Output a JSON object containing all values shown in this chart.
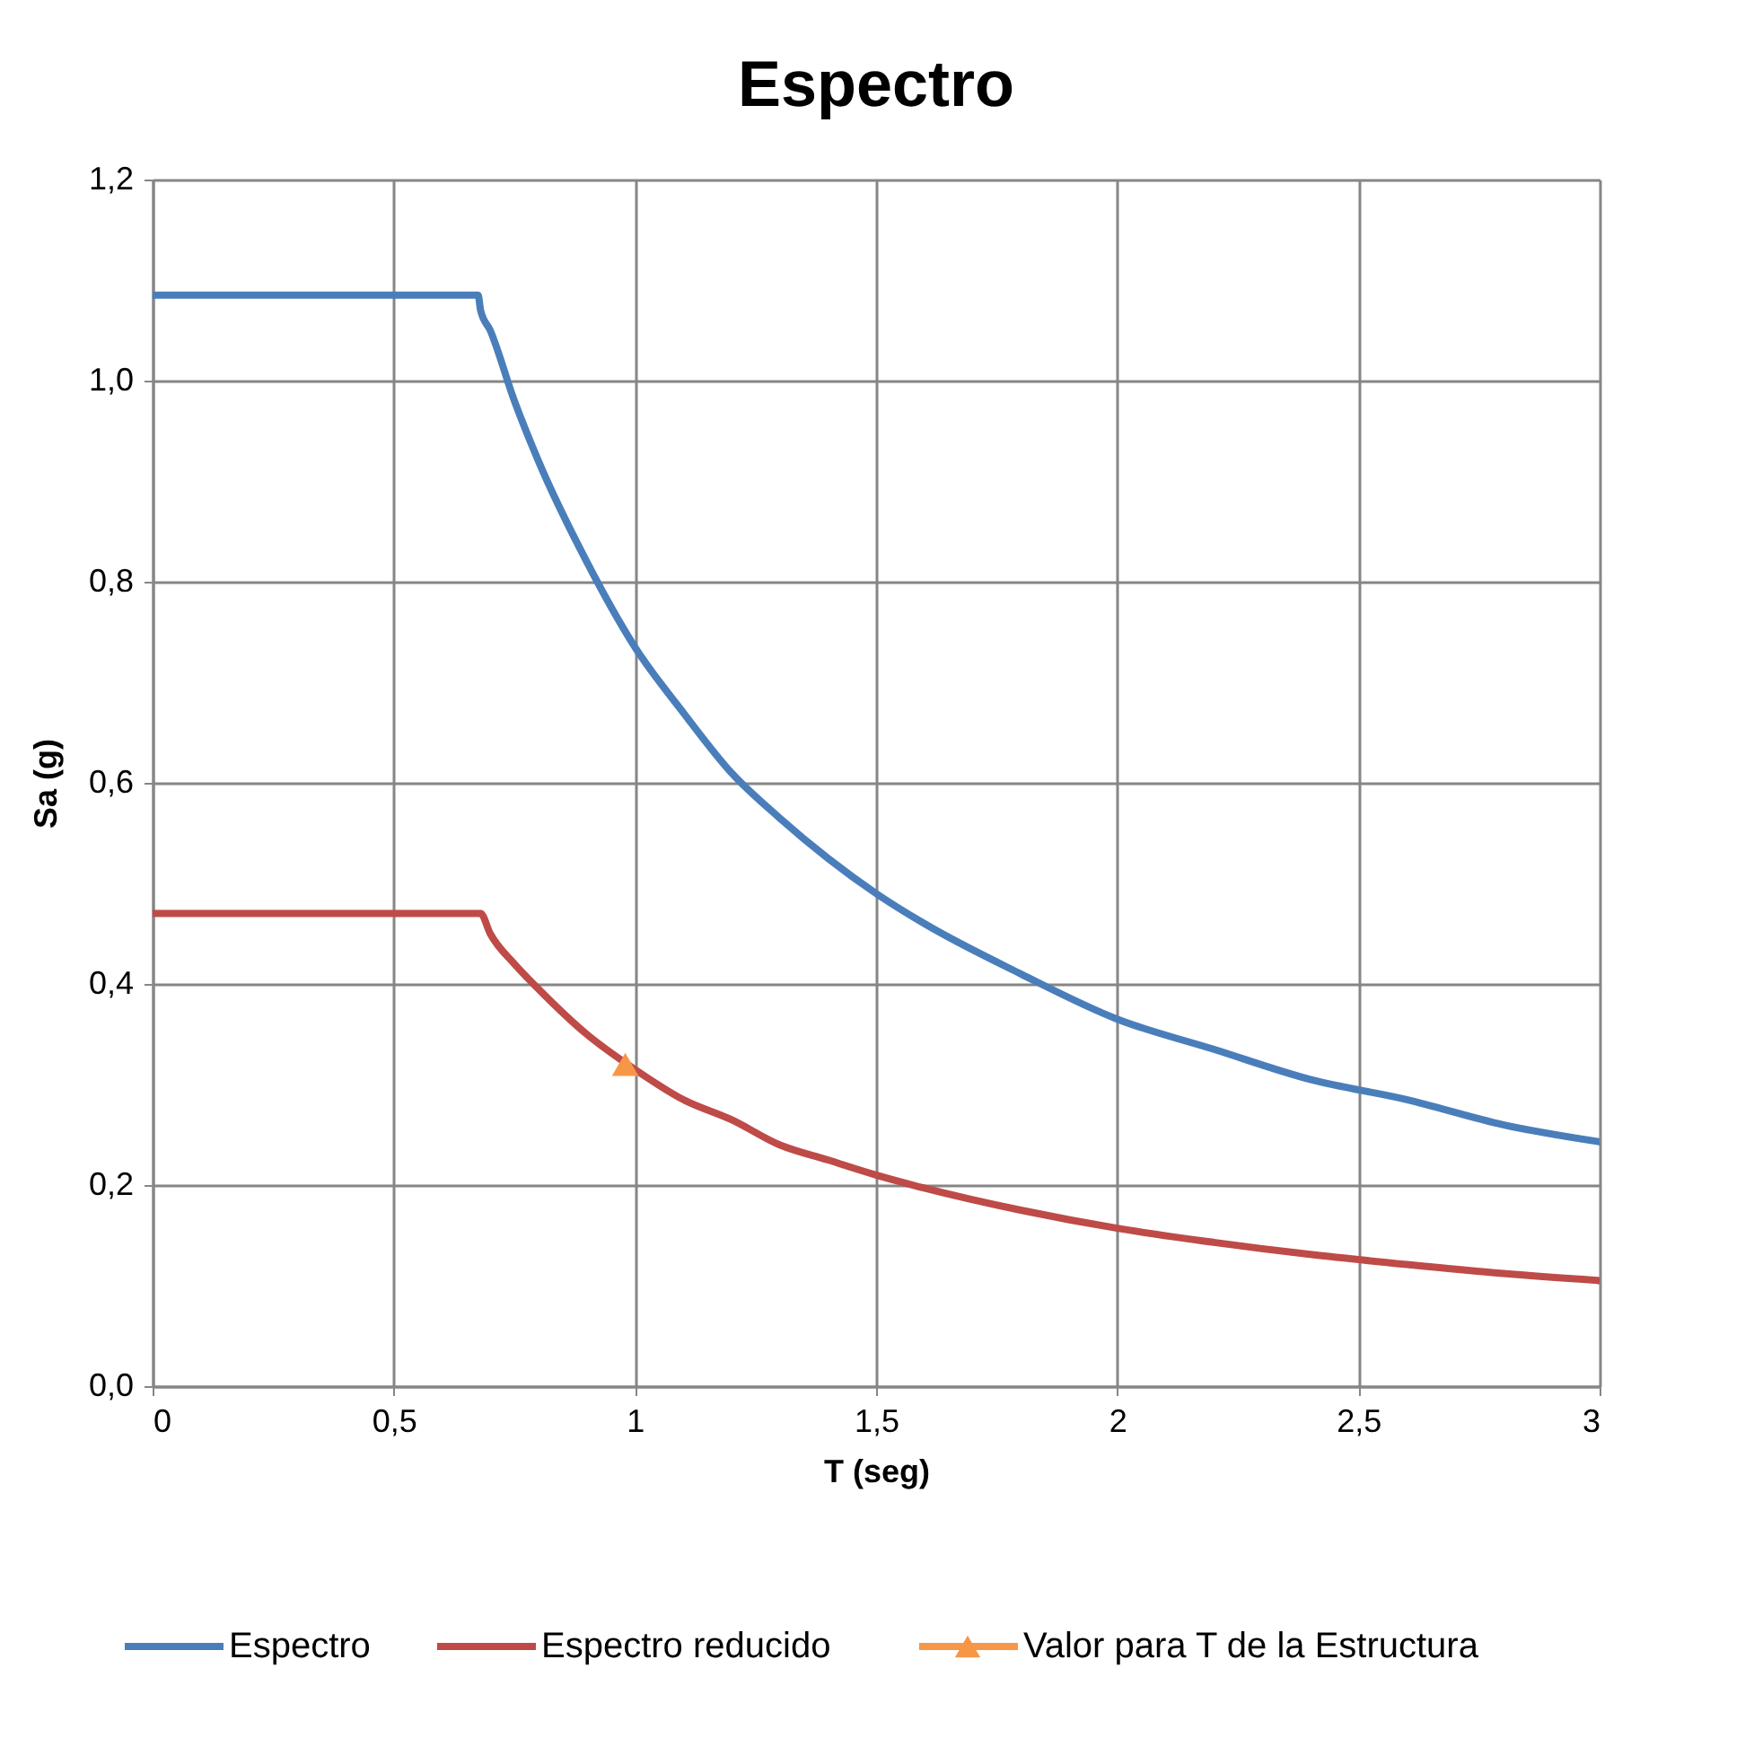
{
  "chart_data": {
    "type": "line",
    "title": "Espectro",
    "xlabel": "T (seg)",
    "ylabel": "Sa (g)",
    "xlim": [
      0,
      3
    ],
    "ylim": [
      0,
      1.2
    ],
    "xticks": [
      0,
      {
        "value": 0.5,
        "label": "0,5"
      },
      1,
      {
        "value": 1.5,
        "label": "1,5"
      },
      2,
      {
        "value": 2.5,
        "label": "2,5"
      },
      3
    ],
    "yticks": [
      {
        "value": 0,
        "label": "0,0"
      },
      {
        "value": 0.2,
        "label": "0,2"
      },
      {
        "value": 0.4,
        "label": "0,4"
      },
      {
        "value": 0.6,
        "label": "0,6"
      },
      {
        "value": 0.8,
        "label": "0,8"
      },
      {
        "value": 1.0,
        "label": "1,0"
      },
      {
        "value": 1.2,
        "label": "1,2"
      }
    ],
    "grid": true,
    "legend": "bottom",
    "line_style": "solid",
    "series": [
      {
        "name": "Espectro",
        "type": "line",
        "color": "#4a7ebb",
        "marker": "none",
        "x": [
          0,
          0.675,
          0.68,
          0.7,
          0.75,
          0.8,
          0.9,
          1,
          1.1,
          1.2,
          1.3,
          1.4,
          1.5,
          1.6,
          1.8,
          2,
          2.2,
          2.4,
          2.6,
          2.8,
          3
        ],
        "values": [
          1.085,
          1.085,
          1.07,
          1.05,
          0.98,
          0.92,
          0.82,
          0.735,
          0.67,
          0.61,
          0.565,
          0.525,
          0.49,
          0.46,
          0.41,
          0.365,
          0.335,
          0.305,
          0.285,
          0.26,
          0.243
        ]
      },
      {
        "name": "Espectro reducido",
        "type": "line",
        "color": "#be4b48",
        "marker": "none",
        "x": [
          0,
          0.68,
          0.7,
          0.75,
          0.8,
          0.9,
          1,
          1.1,
          1.2,
          1.3,
          1.4,
          1.5,
          1.6,
          1.8,
          2,
          2.2,
          2.4,
          2.6,
          2.8,
          3
        ],
        "values": [
          0.47,
          0.47,
          0.45,
          0.42,
          0.395,
          0.35,
          0.315,
          0.285,
          0.265,
          0.24,
          0.225,
          0.21,
          0.197,
          0.175,
          0.157,
          0.143,
          0.131,
          0.121,
          0.112,
          0.105
        ]
      },
      {
        "name": "Valor para T de la Estructura",
        "type": "scatter",
        "color": "#f79646",
        "marker": "triangle",
        "x": [
          0.98
        ],
        "values": [
          0.32
        ]
      }
    ]
  }
}
